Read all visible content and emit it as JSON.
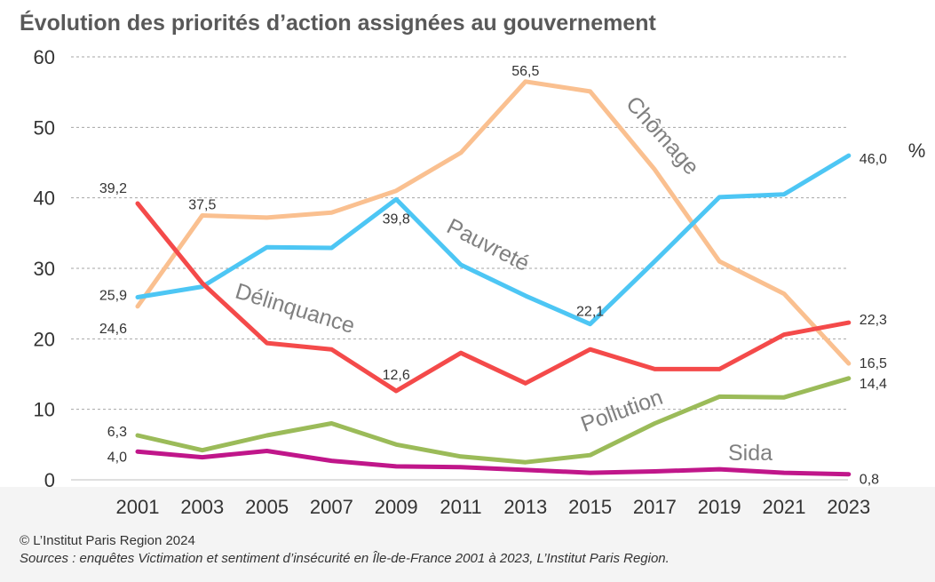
{
  "title": "Évolution des priorités d’action assignées au gouvernement",
  "footer": {
    "copyright": "© L’Institut Paris Region 2024",
    "sources": "Sources : enquêtes Victimation et sentiment d’insécurité en Île-de-France 2001 à 2023, L’Institut Paris Region."
  },
  "chart_data": {
    "type": "line",
    "x": [
      "2001",
      "2003",
      "2005",
      "2007",
      "2009",
      "2011",
      "2013",
      "2015",
      "2017",
      "2019",
      "2021",
      "2023"
    ],
    "ylim": [
      0,
      60
    ],
    "yticks": [
      0,
      10,
      20,
      30,
      40,
      50,
      60
    ],
    "unit": "%",
    "grid": true,
    "legend": "none",
    "series": [
      {
        "name": "Chômage",
        "color": "#fac090",
        "values": [
          24.6,
          37.5,
          37.2,
          37.9,
          41.0,
          46.4,
          56.5,
          55.1,
          44.0,
          31.0,
          26.4,
          16.5
        ],
        "labels": [
          {
            "index": 0,
            "text": "24,6"
          },
          {
            "index": 1,
            "text": "37,5"
          },
          {
            "index": 6,
            "text": "56,5"
          },
          {
            "index": 11,
            "text": "16,5"
          }
        ]
      },
      {
        "name": "Pauvreté",
        "color": "#4dc6f4",
        "values": [
          25.9,
          27.4,
          33.0,
          32.9,
          39.8,
          30.5,
          26.1,
          22.1,
          31.0,
          40.1,
          40.5,
          46.0
        ],
        "labels": [
          {
            "index": 0,
            "text": "25,9"
          },
          {
            "index": 4,
            "text": "39,8"
          },
          {
            "index": 7,
            "text": "22,1"
          },
          {
            "index": 11,
            "text": "46,0"
          }
        ]
      },
      {
        "name": "Délinquance",
        "color": "#f44a4a",
        "values": [
          39.2,
          27.9,
          19.4,
          18.5,
          12.6,
          18.0,
          13.7,
          18.5,
          15.7,
          15.7,
          20.6,
          22.3
        ],
        "labels": [
          {
            "index": 0,
            "text": "39,2"
          },
          {
            "index": 4,
            "text": "12,6"
          },
          {
            "index": 11,
            "text": "22,3"
          }
        ]
      },
      {
        "name": "Pollution",
        "color": "#9bbb59",
        "values": [
          6.3,
          4.2,
          6.3,
          8.0,
          5.0,
          3.3,
          2.5,
          3.5,
          8.0,
          11.8,
          11.7,
          14.4
        ],
        "labels": [
          {
            "index": 0,
            "text": "6,3"
          },
          {
            "index": 11,
            "text": "14,4"
          }
        ]
      },
      {
        "name": "Sida",
        "color": "#c0168a",
        "values": [
          4.0,
          3.2,
          4.1,
          2.7,
          1.9,
          1.8,
          1.4,
          1.0,
          1.2,
          1.5,
          1.0,
          0.8
        ],
        "labels": [
          {
            "index": 0,
            "text": "4,0"
          },
          {
            "index": 11,
            "text": "0,8"
          }
        ]
      }
    ]
  }
}
